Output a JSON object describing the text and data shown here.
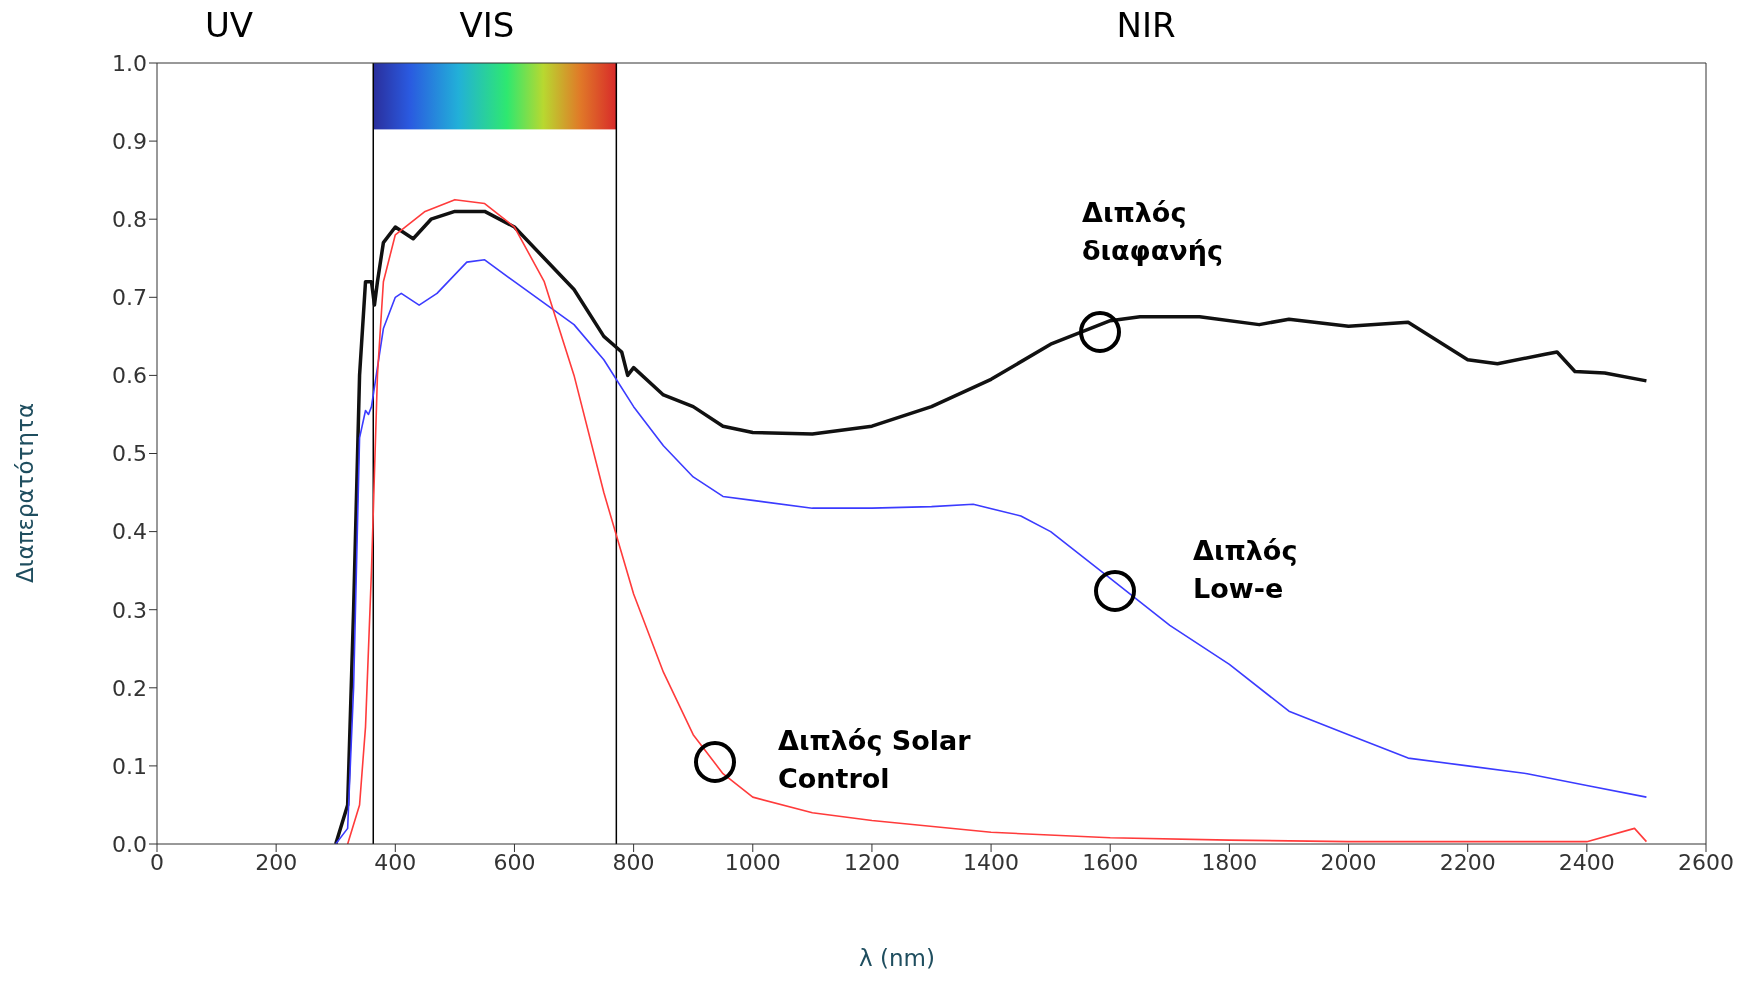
{
  "chart_data": {
    "type": "line",
    "xlabel": "λ (nm)",
    "ylabel": "Διαπερατότητα",
    "xlim": [
      0,
      2600
    ],
    "xticks": [
      0,
      200,
      400,
      600,
      800,
      1000,
      1200,
      1400,
      1600,
      1800,
      2000,
      2200,
      2400,
      2600
    ],
    "ylim": [
      0,
      1
    ],
    "yticks": [
      {
        "value": 0,
        "label": "0.0"
      },
      {
        "value": 0.1,
        "label": "0.1"
      },
      {
        "value": 0.2,
        "label": "0.2"
      },
      {
        "value": 0.3,
        "label": "0.3"
      },
      {
        "value": 0.4,
        "label": "0.4"
      },
      {
        "value": 0.5,
        "label": "0.5"
      },
      {
        "value": 0.6,
        "label": "0.6"
      },
      {
        "value": 0.7,
        "label": "0.7"
      },
      {
        "value": 0.8,
        "label": "0.8"
      },
      {
        "value": 0.9,
        "label": "0.9"
      },
      {
        "value": 1,
        "label": "1.0"
      }
    ],
    "grid": false,
    "legend": false,
    "marker": "none",
    "line_style": "solid",
    "annotations": [
      "UV",
      "VIS",
      "NIR"
    ],
    "ref_lines": [
      {
        "axis": "x",
        "value": 363,
        "color": "#000000"
      },
      {
        "axis": "x",
        "value": 771,
        "color": "#000000"
      }
    ],
    "series": [
      {
        "name": "Διπλός διαφανής",
        "color": "#111111",
        "x": [
          300,
          320,
          330,
          340,
          350,
          360,
          365,
          370,
          380,
          400,
          430,
          460,
          500,
          550,
          600,
          650,
          700,
          750,
          780,
          790,
          800,
          850,
          900,
          950,
          1000,
          1100,
          1200,
          1300,
          1400,
          1500,
          1600,
          1650,
          1750,
          1850,
          1900,
          2000,
          2100,
          2200,
          2250,
          2330,
          2350,
          2380,
          2430,
          2500
        ],
        "values": [
          0,
          0.05,
          0.3,
          0.6,
          0.72,
          0.72,
          0.69,
          0.72,
          0.77,
          0.79,
          0.775,
          0.8,
          0.81,
          0.81,
          0.79,
          0.75,
          0.71,
          0.65,
          0.63,
          0.6,
          0.61,
          0.575,
          0.56,
          0.535,
          0.527,
          0.525,
          0.535,
          0.56,
          0.595,
          0.64,
          0.67,
          0.675,
          0.675,
          0.665,
          0.672,
          0.663,
          0.668,
          0.62,
          0.615,
          0.627,
          0.63,
          0.605,
          0.603,
          0.593
        ]
      },
      {
        "name": "Διπλός Low-e",
        "color": "#3b3bff",
        "x": [
          300,
          320,
          330,
          340,
          350,
          355,
          360,
          380,
          400,
          410,
          440,
          470,
          520,
          550,
          600,
          700,
          750,
          800,
          850,
          900,
          950,
          1000,
          1100,
          1200,
          1300,
          1370,
          1450,
          1500,
          1600,
          1700,
          1800,
          1900,
          2000,
          2100,
          2200,
          2300,
          2400,
          2500
        ],
        "values": [
          0,
          0.02,
          0.2,
          0.52,
          0.555,
          0.55,
          0.56,
          0.66,
          0.7,
          0.705,
          0.69,
          0.705,
          0.745,
          0.748,
          0.72,
          0.665,
          0.62,
          0.56,
          0.51,
          0.47,
          0.445,
          0.44,
          0.43,
          0.43,
          0.432,
          0.435,
          0.42,
          0.4,
          0.34,
          0.28,
          0.23,
          0.17,
          0.14,
          0.11,
          0.1,
          0.09,
          0.075,
          0.06
        ]
      },
      {
        "name": "Διπλός Solar Control",
        "color": "#ff3b3b",
        "x": [
          320,
          340,
          350,
          360,
          370,
          380,
          400,
          450,
          500,
          550,
          600,
          650,
          700,
          750,
          800,
          850,
          900,
          950,
          1000,
          1100,
          1200,
          1400,
          1600,
          1800,
          2000,
          2400,
          2480,
          2500
        ],
        "values": [
          0,
          0.05,
          0.15,
          0.35,
          0.6,
          0.72,
          0.78,
          0.81,
          0.825,
          0.82,
          0.79,
          0.72,
          0.6,
          0.45,
          0.32,
          0.22,
          0.14,
          0.09,
          0.06,
          0.04,
          0.03,
          0.015,
          0.008,
          0.005,
          0.003,
          0.003,
          0.02,
          0.003
        ]
      }
    ]
  }
}
